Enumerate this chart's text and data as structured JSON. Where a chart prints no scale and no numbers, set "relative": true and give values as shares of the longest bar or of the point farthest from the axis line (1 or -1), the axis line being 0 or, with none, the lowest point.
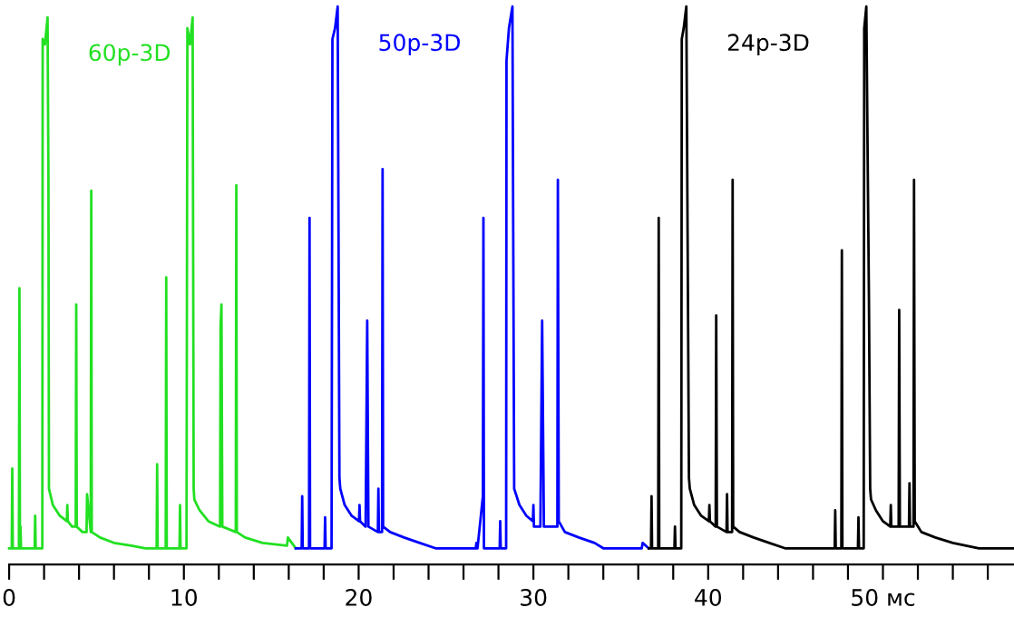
{
  "chart_data": {
    "type": "line",
    "relative": true,
    "xlim": [
      0,
      57.5
    ],
    "xticks": [
      0,
      {
        "value": 2,
        "label": null
      },
      {
        "value": 4,
        "label": null
      },
      {
        "value": 6,
        "label": null
      },
      {
        "value": 8,
        "label": null
      },
      10,
      {
        "value": 12,
        "label": null
      },
      {
        "value": 14,
        "label": null
      },
      {
        "value": 16,
        "label": null
      },
      {
        "value": 18,
        "label": null
      },
      20,
      {
        "value": 22,
        "label": null
      },
      {
        "value": 24,
        "label": null
      },
      {
        "value": 26,
        "label": null
      },
      {
        "value": 28,
        "label": null
      },
      30,
      {
        "value": 32,
        "label": null
      },
      {
        "value": 34,
        "label": null
      },
      {
        "value": 36,
        "label": null
      },
      {
        "value": 38,
        "label": null
      },
      40,
      {
        "value": 42,
        "label": null
      },
      {
        "value": 44,
        "label": null
      },
      {
        "value": 46,
        "label": null
      },
      {
        "value": 48,
        "label": null
      },
      {
        "value": 50,
        "label": "50 мс"
      },
      {
        "value": 52,
        "label": null
      },
      {
        "value": 54,
        "label": null
      },
      {
        "value": 56,
        "label": null
      }
    ],
    "grid": false,
    "legend": false,
    "marker": "none",
    "line_style": "solid",
    "tick_labels": "x",
    "series": [
      {
        "name": "60p-3D",
        "color": "#22e022",
        "x": [
          0,
          0.15,
          0.18,
          0.21,
          0.56,
          0.59,
          0.62,
          0.65,
          0.68,
          0.71,
          1.46,
          1.49,
          1.52,
          1.9,
          1.92,
          2.05,
          2.2,
          2.25,
          2.28,
          2.5,
          2.9,
          3.3,
          3.33,
          3.36,
          3.6,
          3.81,
          3.84,
          3.87,
          4.2,
          4.43,
          4.46,
          4.67,
          4.7,
          4.73,
          5.2,
          6.0,
          7.0,
          7.8,
          8.44,
          8.47,
          8.5,
          8.96,
          8.99,
          9.02,
          9.75,
          9.78,
          9.81,
          10.15,
          10.2,
          10.35,
          10.5,
          10.56,
          10.6,
          10.9,
          11.4,
          12.07,
          12.1,
          12.15,
          12.2,
          12.97,
          13.0,
          13.03,
          13.5,
          14.5,
          15.9,
          15.95,
          16.4
        ],
        "values": [
          0,
          0,
          0.147,
          0,
          0,
          0.48,
          0,
          0.04,
          0,
          0,
          0,
          0.06,
          0,
          0,
          0.94,
          0.93,
          0.98,
          0.68,
          0.11,
          0.08,
          0.06,
          0.05,
          0.08,
          0.05,
          0.04,
          0.04,
          0.45,
          0.04,
          0.03,
          0.03,
          0.1,
          0.03,
          0.66,
          0.03,
          0.02,
          0.01,
          0.005,
          0,
          0,
          0.155,
          0,
          0,
          0.5,
          0,
          0,
          0.08,
          0,
          0,
          0.96,
          0.93,
          0.98,
          0.11,
          0.09,
          0.07,
          0.05,
          0.04,
          0.41,
          0.45,
          0.04,
          0.03,
          0.67,
          0.03,
          0.02,
          0.01,
          0.005,
          0.02,
          0
        ]
      },
      {
        "name": "50p-3D",
        "color": "#0000ff",
        "x": [
          16.4,
          16.74,
          16.77,
          16.8,
          17.16,
          17.19,
          17.22,
          18.05,
          18.08,
          18.11,
          18.45,
          18.5,
          18.65,
          18.8,
          18.9,
          18.95,
          19.2,
          19.6,
          20.02,
          20.05,
          20.08,
          20.4,
          20.49,
          20.56,
          21.1,
          21.13,
          21.16,
          21.34,
          21.37,
          21.4,
          21.8,
          22.6,
          23.5,
          24.4,
          26.7,
          26.74,
          26.77,
          26.8,
          27.11,
          27.14,
          27.17,
          28.07,
          28.1,
          28.13,
          28.44,
          28.46,
          28.6,
          28.8,
          28.85,
          28.9,
          29.2,
          29.6,
          29.97,
          30.0,
          30.03,
          30.4,
          30.5,
          30.6,
          31.37,
          31.4,
          31.45,
          31.8,
          32.6,
          33.5,
          34.0,
          36.2,
          36.25,
          36.6
        ],
        "values": [
          0,
          0,
          0.096,
          0,
          0,
          0.61,
          0,
          0,
          0.057,
          0,
          0,
          0.94,
          0.96,
          1.0,
          0.13,
          0.11,
          0.08,
          0.06,
          0.05,
          0.08,
          0.05,
          0.04,
          0.42,
          0.04,
          0.03,
          0.11,
          0.03,
          0.03,
          0.7,
          0.04,
          0.03,
          0.02,
          0.01,
          0,
          0,
          0.01,
          0,
          0,
          0.096,
          0.61,
          0,
          0,
          0.05,
          0,
          0,
          0.9,
          0.96,
          1.0,
          0.54,
          0.11,
          0.08,
          0.06,
          0.05,
          0.08,
          0.04,
          0.04,
          0.42,
          0.04,
          0.04,
          0.68,
          0.05,
          0.03,
          0.02,
          0.01,
          0,
          0,
          0.01,
          0
        ]
      },
      {
        "name": "24p-3D",
        "color": "#000000",
        "x": [
          36.6,
          36.73,
          36.76,
          36.79,
          37.14,
          37.17,
          37.2,
          38.07,
          38.1,
          38.13,
          38.46,
          38.49,
          38.6,
          38.75,
          38.9,
          38.95,
          39.2,
          39.6,
          40.04,
          40.07,
          40.1,
          40.43,
          40.46,
          40.5,
          41.05,
          41.08,
          41.11,
          41.37,
          41.4,
          41.43,
          41.8,
          42.6,
          43.5,
          44.4,
          47.24,
          47.27,
          47.3,
          47.62,
          47.65,
          47.68,
          48.57,
          48.6,
          48.63,
          48.9,
          48.93,
          49.05,
          49.2,
          49.27,
          49.32,
          49.6,
          50.0,
          50.42,
          50.45,
          50.48,
          50.9,
          50.93,
          50.97,
          51.49,
          51.52,
          51.55,
          51.75,
          51.78,
          51.82,
          52.2,
          53.0,
          54.0,
          55.5,
          57.5
        ],
        "values": [
          0,
          0,
          0.096,
          0,
          0,
          0.61,
          0,
          0,
          0.04,
          0,
          0,
          0.94,
          0.96,
          1.0,
          0.13,
          0.11,
          0.08,
          0.06,
          0.05,
          0.08,
          0.05,
          0.04,
          0.43,
          0.04,
          0.03,
          0.1,
          0.03,
          0.03,
          0.68,
          0.04,
          0.03,
          0.02,
          0.01,
          0,
          0,
          0.07,
          0,
          0,
          0.55,
          0,
          0,
          0.057,
          0,
          0,
          0.96,
          1.0,
          0.46,
          0.11,
          0.09,
          0.07,
          0.05,
          0.04,
          0.08,
          0.04,
          0.04,
          0.44,
          0.04,
          0.04,
          0.12,
          0.04,
          0.04,
          0.68,
          0.05,
          0.03,
          0.02,
          0.01,
          0,
          0
        ]
      }
    ]
  }
}
